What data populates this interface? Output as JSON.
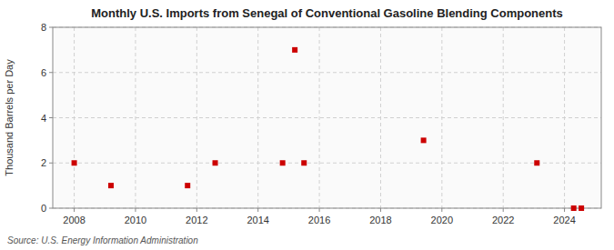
{
  "chart_data": {
    "type": "scatter",
    "title": "Monthly U.S. Imports from Senegal of Conventional Gasoline Blending Components",
    "ylabel": "Thousand Barrels per Day",
    "source": "Source: U.S. Energy Information Administration",
    "x": [
      2008.0,
      2009.2,
      2011.7,
      2012.6,
      2014.8,
      2015.2,
      2015.5,
      2019.4,
      2023.1,
      2024.3,
      2024.55
    ],
    "values": [
      2,
      1,
      1,
      2,
      2,
      7,
      2,
      3,
      2,
      0,
      0
    ],
    "color": "#cc0000",
    "marker": "square",
    "xlim": [
      2007.3,
      2025.2
    ],
    "ylim": [
      0,
      8
    ],
    "xticks": [
      2008,
      2010,
      2012,
      2014,
      2016,
      2018,
      2020,
      2022,
      2024
    ],
    "yticks": [
      0,
      2,
      4,
      6,
      8
    ],
    "grid": true
  }
}
